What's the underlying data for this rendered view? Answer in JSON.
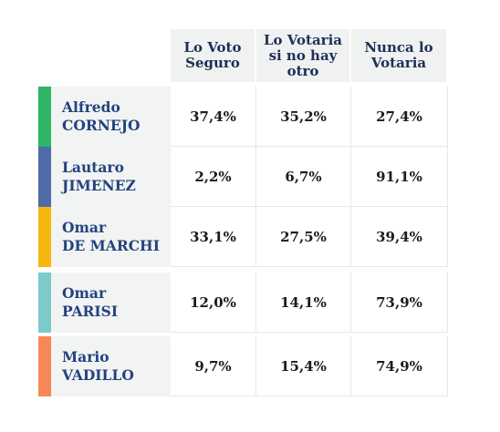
{
  "chart_data": {
    "type": "table",
    "columns": [
      "Lo Voto\nSeguro",
      "Lo Votaria\nsi no hay\notro",
      "Nunca lo\nVotaria"
    ],
    "rows": [
      {
        "name": "Alfredo\nCORNEJO",
        "color": "#2db565",
        "values": [
          "37,4%",
          "35,2%",
          "27,4%"
        ]
      },
      {
        "name": "Lautaro\nJIMENEZ",
        "color": "#4f6ba8",
        "values": [
          "2,2%",
          "6,7%",
          "91,1%"
        ]
      },
      {
        "name": "Omar\nDE MARCHI",
        "color": "#f3b70e",
        "values": [
          "33,1%",
          "27,5%",
          "39,4%"
        ]
      },
      {
        "name": "Omar\nPARISI",
        "color": "#7ccaca",
        "values": [
          "12,0%",
          "14,1%",
          "73,9%"
        ]
      },
      {
        "name": "Mario\nVADILLO",
        "color": "#f68858",
        "values": [
          "9,7%",
          "15,4%",
          "74,9%"
        ]
      }
    ]
  }
}
